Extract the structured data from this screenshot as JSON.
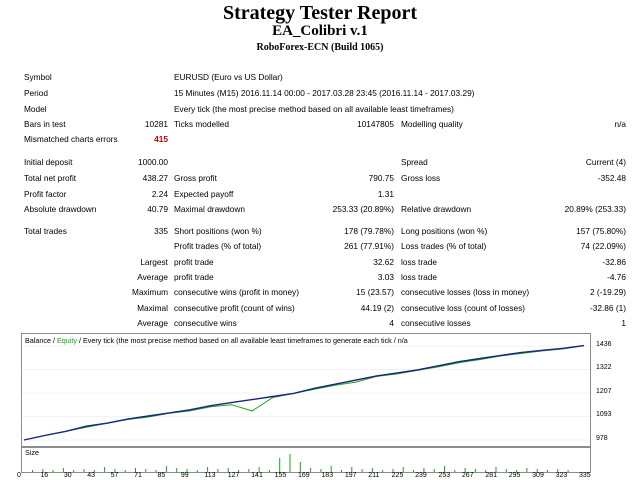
{
  "header": {
    "title": "Strategy Tester Report",
    "ea_name": "EA_Colibri v.1",
    "server": "RoboForex-ECN (Build 1065)"
  },
  "info": {
    "symbol_label": "Symbol",
    "symbol_value": "EURUSD (Euro vs US Dollar)",
    "period_label": "Period",
    "period_value": "15 Minutes (M15) 2016.11.14 00:00 - 2017.03.28 23:45 (2016.11.14 - 2017.03.29)",
    "model_label": "Model",
    "model_value": "Every tick (the most precise method based on all available least timeframes)",
    "bars_label": "Bars in test",
    "bars_value": "10281",
    "ticks_label": "Ticks modelled",
    "ticks_value": "10147805",
    "quality_label": "Modelling quality",
    "quality_value": "n/a",
    "mismatch_label": "Mismatched charts errors",
    "mismatch_value": "415"
  },
  "stats": {
    "initial_deposit_label": "Initial deposit",
    "initial_deposit": "1000.00",
    "spread_label": "Spread",
    "spread": "Current (4)",
    "net_profit_label": "Total net profit",
    "net_profit": "438.27",
    "gross_profit_label": "Gross profit",
    "gross_profit": "790.75",
    "gross_loss_label": "Gross loss",
    "gross_loss": "-352.48",
    "profit_factor_label": "Profit factor",
    "profit_factor": "2.24",
    "expected_payoff_label": "Expected payoff",
    "expected_payoff": "1.31",
    "abs_dd_label": "Absolute drawdown",
    "abs_dd": "40.79",
    "max_dd_label": "Maximal drawdown",
    "max_dd": "253.33 (20.89%)",
    "rel_dd_label": "Relative drawdown",
    "rel_dd": "20.89% (253.33)",
    "total_trades_label": "Total trades",
    "total_trades": "335",
    "short_label": "Short positions (won %)",
    "short": "178 (79.78%)",
    "long_label": "Long positions (won %)",
    "long": "157 (75.80%)",
    "profit_trades_label": "Profit trades (% of total)",
    "profit_trades": "261 (77.91%)",
    "loss_trades_label": "Loss trades (% of total)",
    "loss_trades": "74 (22.09%)",
    "largest_label": "Largest",
    "largest_profit_label": "profit trade",
    "largest_profit": "32.62",
    "largest_loss_label": "loss trade",
    "largest_loss": "-32.86",
    "average_label": "Average",
    "average_profit_label": "profit trade",
    "average_profit": "3.03",
    "average_loss_label": "loss trade",
    "average_loss": "-4.76",
    "maximum_label": "Maximum",
    "max_cons_wins_label": "consecutive wins (profit in money)",
    "max_cons_wins": "15 (23.57)",
    "max_cons_losses_label": "consecutive losses (loss in money)",
    "max_cons_losses": "2 (-19.29)",
    "maximal_label": "Maximal",
    "maximal_cons_profit_label": "consecutive profit (count of wins)",
    "maximal_cons_profit": "44.19 (2)",
    "maximal_cons_loss_label": "consecutive loss (count of losses)",
    "maximal_cons_loss": "-32.86 (1)",
    "avg_label": "Average",
    "avg_cons_wins_label": "consecutive wins",
    "avg_cons_wins": "4",
    "avg_cons_losses_label": "consecutive losses",
    "avg_cons_losses": "1"
  },
  "chart_legend": {
    "balance": "Balance",
    "sep": " / ",
    "equity": "Equity",
    "rest": " / Every tick (the most precise method based on all available least timeframes to generate each tick / n/a"
  },
  "size_label": "Size",
  "colors": {
    "balance": "#1a237e",
    "equity": "#1aa61a",
    "size_bars": "#1aa61a",
    "error": "#c00000"
  },
  "chart_data": {
    "type": "line",
    "series": [
      {
        "name": "Balance",
        "values": [
          978,
          1000,
          1020,
          1045,
          1060,
          1080,
          1095,
          1110,
          1125,
          1145,
          1160,
          1175,
          1190,
          1205,
          1230,
          1250,
          1270,
          1290,
          1305,
          1320,
          1340,
          1360,
          1375,
          1390,
          1405,
          1415,
          1425,
          1438
        ]
      },
      {
        "name": "Equity",
        "values": [
          978,
          1000,
          1020,
          1040,
          1060,
          1078,
          1090,
          1108,
          1120,
          1140,
          1150,
          1120,
          1185,
          1205,
          1225,
          1245,
          1260,
          1288,
          1300,
          1318,
          1335,
          1355,
          1370,
          1388,
          1400,
          1412,
          1422,
          1438
        ]
      }
    ],
    "y_ticks": [
      "1436",
      "1322",
      "1207",
      "1093",
      "978"
    ],
    "x_ticks": [
      "0",
      "16",
      "30",
      "43",
      "57",
      "71",
      "85",
      "99",
      "113",
      "127",
      "141",
      "155",
      "169",
      "183",
      "197",
      "211",
      "225",
      "239",
      "253",
      "267",
      "281",
      "295",
      "309",
      "323",
      "335"
    ],
    "ylim": [
      978,
      1436
    ],
    "xlim": [
      0,
      335
    ]
  }
}
